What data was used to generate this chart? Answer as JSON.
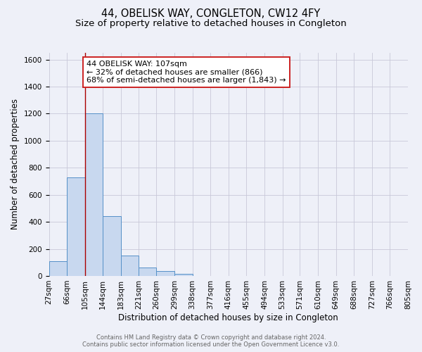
{
  "title": "44, OBELISK WAY, CONGLETON, CW12 4FY",
  "subtitle": "Size of property relative to detached houses in Congleton",
  "xlabel": "Distribution of detached houses by size in Congleton",
  "ylabel": "Number of detached properties",
  "bar_left_edges": [
    27,
    66,
    105,
    144,
    183,
    221,
    260,
    299,
    338,
    377,
    416,
    455,
    494,
    533,
    571,
    610,
    649,
    688,
    727,
    766
  ],
  "bar_heights": [
    110,
    730,
    1200,
    440,
    150,
    60,
    35,
    15,
    0,
    0,
    0,
    0,
    0,
    0,
    0,
    0,
    0,
    0,
    0,
    0
  ],
  "bin_width": 39,
  "bar_color": "#c8d8ef",
  "bar_edge_color": "#5590c8",
  "ylim": [
    0,
    1650
  ],
  "yticks": [
    0,
    200,
    400,
    600,
    800,
    1000,
    1200,
    1400,
    1600
  ],
  "xtick_labels": [
    "27sqm",
    "66sqm",
    "105sqm",
    "144sqm",
    "183sqm",
    "221sqm",
    "260sqm",
    "299sqm",
    "338sqm",
    "377sqm",
    "416sqm",
    "455sqm",
    "494sqm",
    "533sqm",
    "571sqm",
    "610sqm",
    "649sqm",
    "688sqm",
    "727sqm",
    "766sqm",
    "805sqm"
  ],
  "vline_x": 105,
  "vline_color": "#aa0000",
  "annotation_line1": "44 OBELISK WAY: 107sqm",
  "annotation_line2": "← 32% of detached houses are smaller (866)",
  "annotation_line3": "68% of semi-detached houses are larger (1,843) →",
  "grid_color": "#c8c8d8",
  "background_color": "#eef0f8",
  "footer_line1": "Contains HM Land Registry data © Crown copyright and database right 2024.",
  "footer_line2": "Contains public sector information licensed under the Open Government Licence v3.0.",
  "title_fontsize": 10.5,
  "subtitle_fontsize": 9.5,
  "axis_label_fontsize": 8.5,
  "tick_fontsize": 7.5,
  "annotation_fontsize": 8,
  "footer_fontsize": 6
}
